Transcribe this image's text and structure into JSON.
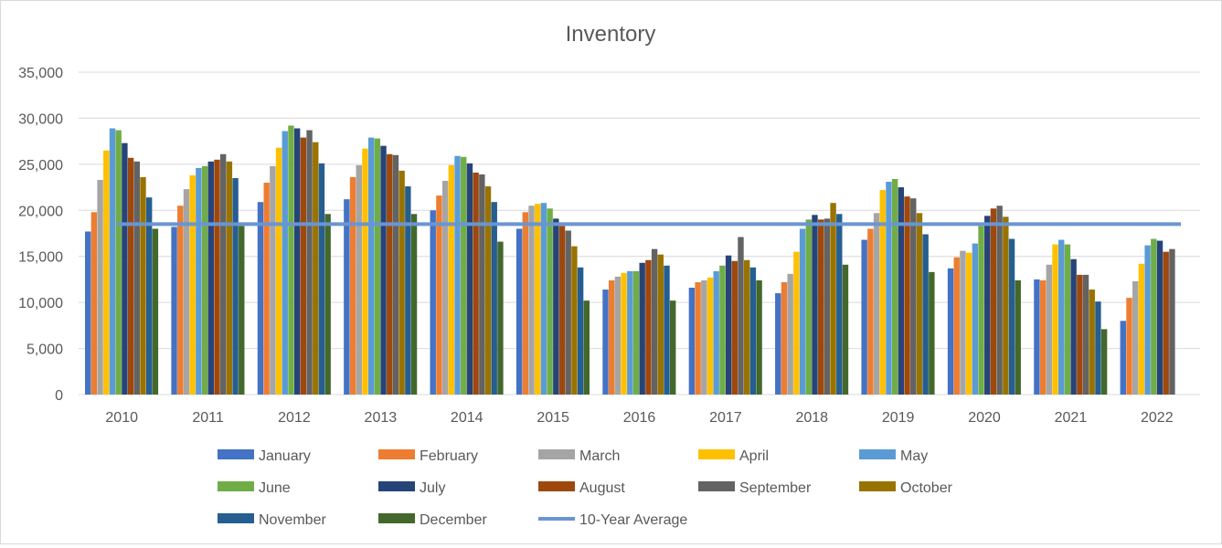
{
  "chart_data": {
    "type": "bar",
    "title": "Inventory",
    "xlabel": "",
    "ylabel": "",
    "ylim": [
      0,
      35000
    ],
    "yticks": [
      0,
      5000,
      10000,
      15000,
      20000,
      25000,
      30000,
      35000
    ],
    "ytick_labels": [
      "0",
      "5,000",
      "10,000",
      "15,000",
      "20,000",
      "25,000",
      "30,000",
      "35,000"
    ],
    "grid": true,
    "legend_position": "bottom",
    "categories": [
      "2010",
      "2011",
      "2012",
      "2013",
      "2014",
      "2015",
      "2016",
      "2017",
      "2018",
      "2019",
      "2020",
      "2021",
      "2022"
    ],
    "series": [
      {
        "name": "January",
        "color": "#4472C4",
        "values": [
          17700,
          18200,
          20900,
          21200,
          20000,
          18000,
          11400,
          11600,
          11000,
          16800,
          13700,
          12500,
          8000
        ]
      },
      {
        "name": "February",
        "color": "#ED7D31",
        "values": [
          19800,
          20500,
          23000,
          23600,
          21600,
          19800,
          12400,
          12200,
          12200,
          18000,
          14900,
          12400,
          10500
        ]
      },
      {
        "name": "March",
        "color": "#A5A5A5",
        "values": [
          23300,
          22300,
          24800,
          24900,
          23200,
          20500,
          12800,
          12400,
          13100,
          19700,
          15600,
          14100,
          12300
        ]
      },
      {
        "name": "April",
        "color": "#FFC000",
        "values": [
          26500,
          23800,
          26800,
          26700,
          24900,
          20700,
          13200,
          12700,
          15500,
          22200,
          15400,
          16300,
          14200
        ]
      },
      {
        "name": "May",
        "color": "#5B9BD5",
        "values": [
          28900,
          24600,
          28600,
          27900,
          25900,
          20800,
          13400,
          13400,
          18000,
          23100,
          16400,
          16800,
          16200
        ]
      },
      {
        "name": "June",
        "color": "#70AD47",
        "values": [
          28700,
          24800,
          29200,
          27800,
          25800,
          20200,
          13400,
          14000,
          19000,
          23400,
          18300,
          16300,
          16900
        ]
      },
      {
        "name": "July",
        "color": "#264478",
        "values": [
          27300,
          25300,
          28900,
          27000,
          25100,
          19100,
          14300,
          15100,
          19500,
          22500,
          19400,
          14700,
          16700
        ]
      },
      {
        "name": "August",
        "color": "#9E480E",
        "values": [
          25700,
          25500,
          27900,
          26100,
          24100,
          18300,
          14600,
          14500,
          19000,
          21500,
          20200,
          13000,
          15500
        ]
      },
      {
        "name": "September",
        "color": "#636363",
        "values": [
          25300,
          26100,
          28700,
          26000,
          23900,
          17800,
          15800,
          17100,
          19100,
          21300,
          20500,
          13000,
          15800
        ]
      },
      {
        "name": "October",
        "color": "#997300",
        "values": [
          23600,
          25300,
          27400,
          24300,
          22600,
          16100,
          15200,
          14600,
          20800,
          19700,
          19300,
          11400,
          null
        ]
      },
      {
        "name": "November",
        "color": "#255E91",
        "values": [
          21400,
          23500,
          25100,
          22600,
          20900,
          13800,
          14000,
          13800,
          19600,
          17400,
          16900,
          10100,
          null
        ]
      },
      {
        "name": "December",
        "color": "#43682B",
        "values": [
          18000,
          18300,
          19600,
          19600,
          16600,
          10200,
          10200,
          12400,
          14100,
          13300,
          12400,
          7100,
          null
        ]
      }
    ],
    "average_line": {
      "name": "10-Year Average",
      "color": "#6A95D1",
      "value": 18500
    }
  }
}
